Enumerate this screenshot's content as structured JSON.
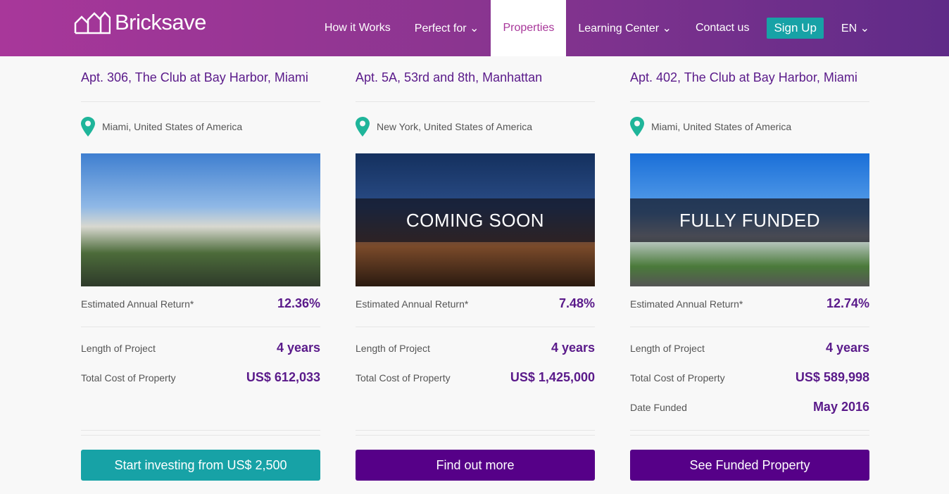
{
  "brand": {
    "name": "Bricksave"
  },
  "nav": {
    "items": [
      {
        "label": "How it Works"
      },
      {
        "label": "Perfect for ⌄"
      },
      {
        "label": "Properties"
      },
      {
        "label": "Learning Center ⌄"
      },
      {
        "label": "Contact us"
      }
    ],
    "signup": "Sign Up",
    "lang": "EN ⌄"
  },
  "colors": {
    "accent": "#5a1a8a",
    "teal": "#17a2a6",
    "purple_button": "#560088"
  },
  "properties": [
    {
      "title": "Apt. 306, The Club at Bay Harbor, Miami",
      "location": "Miami, United States of America",
      "overlay": "",
      "return_label": "Estimated Annual Return*",
      "return": "12.36%",
      "length_label": "Length of Project",
      "length": "4 years",
      "cost_label": "Total Cost of Property",
      "cost": "US$ 612,033",
      "button": "Start investing from US$ 2,500"
    },
    {
      "title": "Apt. 5A, 53rd and 8th, Manhattan",
      "location": "New York, United States of America",
      "overlay": "COMING SOON",
      "return_label": "Estimated Annual Return*",
      "return": "7.48%",
      "length_label": "Length of Project",
      "length": "4 years",
      "cost_label": "Total Cost of Property",
      "cost": "US$ 1,425,000",
      "button": "Find out more"
    },
    {
      "title": "Apt. 402, The Club at Bay Harbor, Miami",
      "location": "Miami, United States of America",
      "overlay": "FULLY FUNDED",
      "return_label": "Estimated Annual Return*",
      "return": "12.74%",
      "length_label": "Length of Project",
      "length": "4 years",
      "cost_label": "Total Cost of Property",
      "cost": "US$ 589,998",
      "date_label": "Date Funded",
      "date": "May 2016",
      "button": "See Funded Property"
    }
  ]
}
